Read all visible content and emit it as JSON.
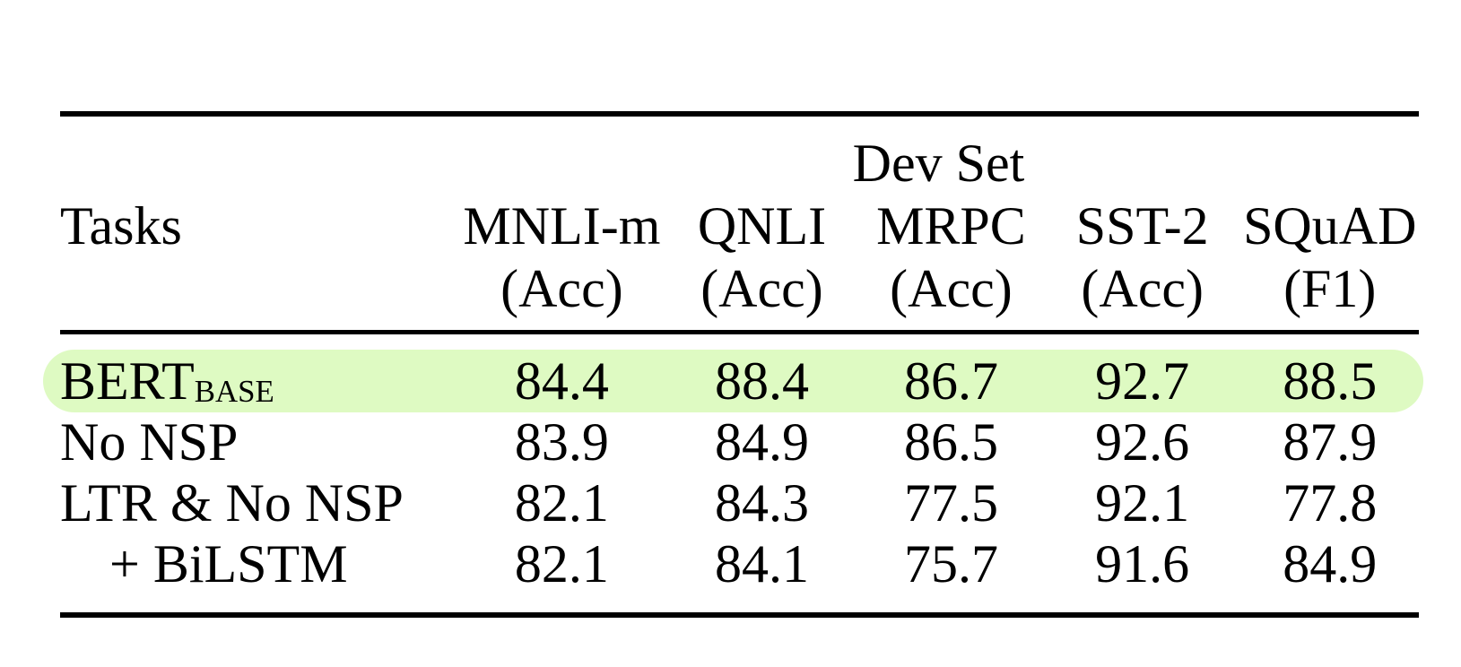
{
  "figure": {
    "group_header": "Dev Set",
    "tasks_header": "Tasks",
    "highlight_color": "#defac2",
    "columns": [
      {
        "name": "MNLI-m",
        "metric": "(Acc)"
      },
      {
        "name": "QNLI",
        "metric": "(Acc)"
      },
      {
        "name": "MRPC",
        "metric": "(Acc)"
      },
      {
        "name": "SST-2",
        "metric": "(Acc)"
      },
      {
        "name": "SQuAD",
        "metric": "(F1)"
      }
    ],
    "rows": [
      {
        "task": "BERT",
        "task_subscript": "BASE",
        "highlighted": true,
        "values": [
          "84.4",
          "88.4",
          "86.7",
          "92.7",
          "88.5"
        ]
      },
      {
        "task": "No NSP",
        "task_subscript": "",
        "highlighted": false,
        "values": [
          "83.9",
          "84.9",
          "86.5",
          "92.6",
          "87.9"
        ]
      },
      {
        "task": "LTR & No NSP",
        "task_subscript": "",
        "highlighted": false,
        "values": [
          "82.1",
          "84.3",
          "77.5",
          "92.1",
          "77.8"
        ]
      },
      {
        "task": "+ BiLSTM",
        "task_subscript": "",
        "highlighted": false,
        "values": [
          "82.1",
          "84.1",
          "75.7",
          "91.6",
          "84.9"
        ]
      }
    ]
  }
}
